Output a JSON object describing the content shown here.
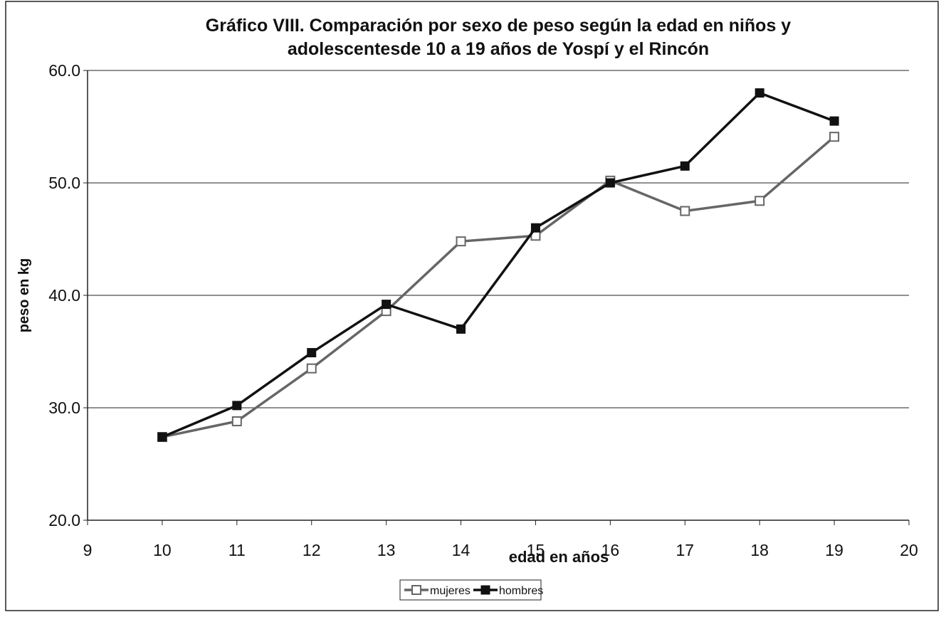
{
  "chart_data": {
    "type": "line",
    "title": "Gráfico VIII. Comparación por sexo de peso según la edad en niños y adolescentesde 10 a 19 años de Yospí y el Rincón",
    "x_label": "edad en años",
    "y_label": "peso en kg",
    "x": [
      10,
      11,
      12,
      13,
      14,
      15,
      16,
      17,
      18,
      19
    ],
    "series": [
      {
        "name": "mujeres",
        "color": "#666666",
        "marker": "hollow-square",
        "values": [
          27.4,
          28.8,
          33.5,
          38.6,
          44.8,
          45.3,
          50.2,
          47.5,
          48.4,
          54.1
        ]
      },
      {
        "name": "hombres",
        "color": "#111111",
        "marker": "filled-square",
        "values": [
          27.4,
          30.2,
          34.9,
          39.2,
          37.0,
          46.0,
          50.0,
          51.5,
          58.0,
          55.5
        ]
      }
    ],
    "xlim": [
      9,
      20
    ],
    "xticks": [
      9,
      10,
      11,
      12,
      13,
      14,
      15,
      16,
      17,
      18,
      19,
      20
    ],
    "ylim": [
      20,
      60
    ],
    "yticks": [
      {
        "value": 20,
        "label": "20.0"
      },
      {
        "value": 30,
        "label": "30.0"
      },
      {
        "value": 40,
        "label": "40.0"
      },
      {
        "value": 50,
        "label": "50.0"
      },
      {
        "value": 60,
        "label": "60.0"
      }
    ],
    "grid": true,
    "legend": "bottom"
  }
}
